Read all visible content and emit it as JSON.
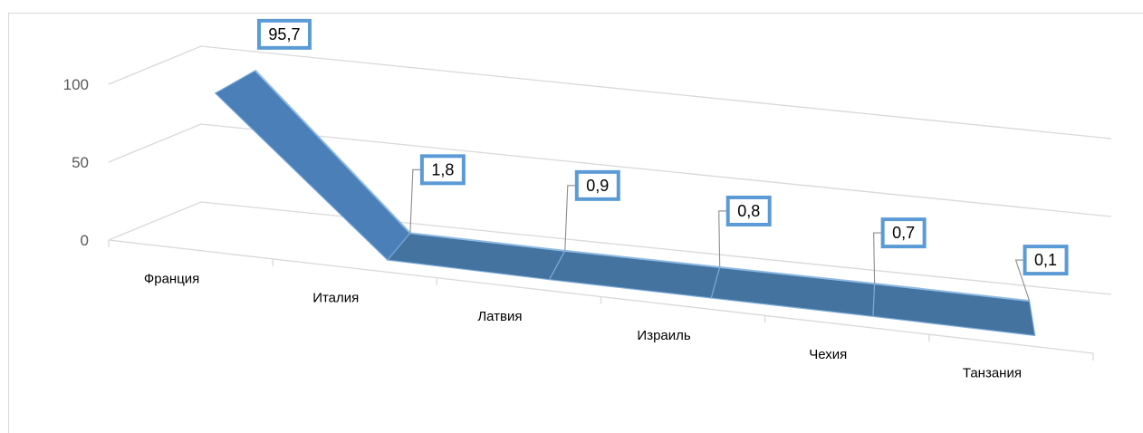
{
  "chart_data": {
    "type": "line",
    "style": "3d-ribbon",
    "categories": [
      "Франция",
      "Италия",
      "Латвия",
      "Израиль",
      "Чехия",
      "Танзания"
    ],
    "series": [
      {
        "values": [
          95.7,
          1.8,
          0.9,
          0.8,
          0.7,
          0.1
        ],
        "data_labels": [
          "95,7",
          "1,8",
          "0,9",
          "0,8",
          "0,7",
          "0,1"
        ],
        "color": "#4a7eb5",
        "label_border_color": "#5b9bd5"
      }
    ],
    "y_ticks": [
      "0",
      "50",
      "100"
    ],
    "ylim": [
      0,
      100
    ],
    "grid": true,
    "legend": false,
    "title": "",
    "xlabel": "",
    "ylabel": ""
  }
}
